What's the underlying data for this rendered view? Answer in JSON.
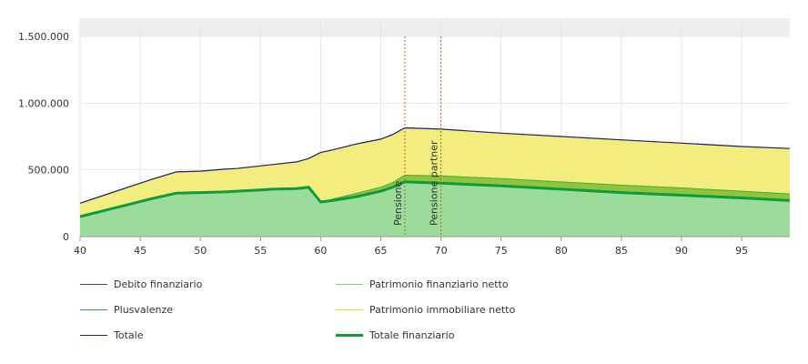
{
  "chart_data": {
    "type": "area",
    "x": [
      40,
      42,
      44,
      46,
      48,
      50,
      52,
      53,
      55,
      56,
      58,
      59,
      60,
      61,
      63,
      65,
      66,
      67,
      70,
      75,
      80,
      85,
      90,
      95,
      99
    ],
    "series": [
      {
        "name": "Debito finanziario",
        "color": "#4b3b8c",
        "values": [
          0,
          0,
          0,
          0,
          0,
          0,
          0,
          0,
          0,
          0,
          0,
          0,
          0,
          0,
          0,
          0,
          0,
          0,
          0,
          0,
          0,
          0,
          0,
          0,
          0
        ]
      },
      {
        "name": "Patrimonio finanziario netto",
        "color": "#7ccf7c",
        "values": [
          150000,
          195000,
          240000,
          285000,
          325000,
          330000,
          335000,
          340000,
          350000,
          355000,
          360000,
          370000,
          260000,
          270000,
          300000,
          340000,
          370000,
          410000,
          400000,
          380000,
          355000,
          330000,
          310000,
          290000,
          270000
        ]
      },
      {
        "name": "Plusvalenze",
        "color": "#3e9e3e",
        "values": [
          0,
          0,
          0,
          0,
          0,
          0,
          0,
          0,
          0,
          0,
          0,
          0,
          0,
          10000,
          25000,
          30000,
          35000,
          50000,
          55000,
          55000,
          55000,
          55000,
          55000,
          50000,
          50000
        ]
      },
      {
        "name": "Patrimonio immobiliare netto",
        "color": "#e8d93a",
        "values": [
          100000,
          115000,
          130000,
          145000,
          160000,
          160000,
          170000,
          170000,
          180000,
          185000,
          200000,
          215000,
          370000,
          370000,
          370000,
          360000,
          360000,
          355000,
          350000,
          340000,
          340000,
          340000,
          335000,
          335000,
          340000
        ]
      },
      {
        "name": "Totale",
        "color": "#1f1f7a",
        "values": [
          250000,
          310000,
          370000,
          430000,
          485000,
          490000,
          505000,
          510000,
          530000,
          540000,
          560000,
          585000,
          630000,
          650000,
          695000,
          730000,
          765000,
          815000,
          805000,
          775000,
          750000,
          725000,
          700000,
          675000,
          660000
        ]
      },
      {
        "name": "Totale finanziario",
        "color": "#0f9a3c",
        "values": [
          150000,
          195000,
          240000,
          285000,
          325000,
          330000,
          335000,
          340000,
          350000,
          355000,
          360000,
          370000,
          260000,
          280000,
          325000,
          370000,
          405000,
          460000,
          455000,
          435000,
          410000,
          385000,
          365000,
          340000,
          320000
        ]
      }
    ],
    "xlim": [
      40,
      99
    ],
    "ylim": [
      0,
      1500000
    ],
    "xticks": [
      "40",
      "45",
      "50",
      "55",
      "60",
      "65",
      "70",
      "75",
      "80",
      "85",
      "90",
      "95"
    ],
    "yticks": [
      "0",
      "500.000",
      "1.000.000",
      "1.500.000"
    ],
    "markers": [
      {
        "label": "Pensione",
        "x": 67,
        "color": "#b5651d"
      },
      {
        "label": "Pensione partner",
        "x": 70,
        "color": "#b5651d"
      }
    ],
    "grid": true,
    "legend_position": "bottom"
  },
  "legend": [
    {
      "label": "Debito finanziario",
      "color": "#4b3b8c",
      "thick": false
    },
    {
      "label": "Patrimonio finanziario netto",
      "color": "#7ccf7c",
      "thick": false
    },
    {
      "label": "Plusvalenze",
      "color": "#3e9e3e",
      "thick": false
    },
    {
      "label": "Patrimonio immobiliare netto",
      "color": "#e8d93a",
      "thick": false
    },
    {
      "label": "Totale",
      "color": "#1f1f7a",
      "thick": false
    },
    {
      "label": "Totale finanziario",
      "color": "#0f9a3c",
      "thick": true
    }
  ]
}
